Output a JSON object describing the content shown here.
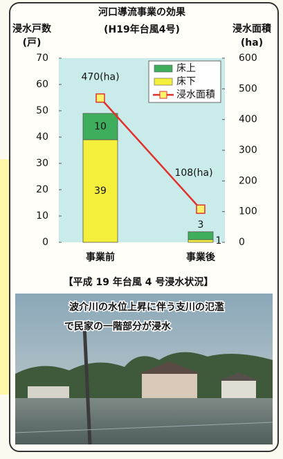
{
  "chart_data": {
    "type": "bar",
    "title": "河口導流事業の効果",
    "subtitle": "(H19年台風4号)",
    "ylabel": "浸水戸数",
    "yunit": "(戸)",
    "y2label": "浸水面積",
    "y2unit": "(ha)",
    "categories": [
      "事業前",
      "事業後"
    ],
    "series": [
      {
        "name": "床上",
        "color": "#3fae5c",
        "values": [
          10,
          3
        ]
      },
      {
        "name": "床下",
        "color": "#f4ef3a",
        "values": [
          39,
          1
        ]
      },
      {
        "name": "浸水面積",
        "type": "line",
        "axis": "y2",
        "color": "#e0312c",
        "values": [
          470,
          108
        ],
        "value_labels": [
          "470(ha)",
          "108(ha)"
        ]
      }
    ],
    "ylim": [
      0,
      70
    ],
    "yticks": [
      0,
      10,
      20,
      30,
      40,
      50,
      60,
      70
    ],
    "y2lim": [
      0,
      600
    ],
    "y2ticks": [
      0,
      100,
      200,
      300,
      400,
      500,
      600
    ],
    "legend": "top-right"
  },
  "photo": {
    "caption": "【平成 19 年台風 4 号浸水状況】",
    "text": [
      "波介川の水位上昇に伴う支川の氾濫",
      "で民家の一階部分が浸水"
    ]
  }
}
